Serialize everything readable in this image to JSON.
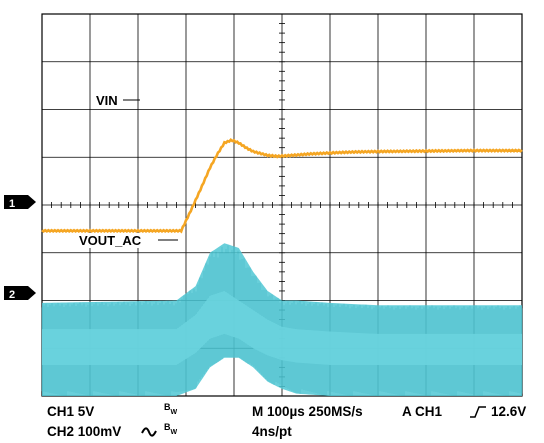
{
  "chart_data": {
    "type": "line",
    "title": "",
    "grid": true,
    "grid_divisions": {
      "x": 10,
      "y": 8
    },
    "time_per_div_us": 100,
    "x_unit": "us",
    "series": [
      {
        "name": "VIN",
        "channel": 1,
        "color": "#f5a623",
        "volts_per_div": 5,
        "ground_div": 3.0,
        "x": [
          0,
          290,
          310,
          330,
          350,
          365,
          380,
          395,
          410,
          425,
          440,
          455,
          470,
          490,
          520,
          560,
          600,
          650,
          700,
          800,
          900,
          1000
        ],
        "y": [
          2.3,
          2.3,
          4.4,
          6.6,
          8.9,
          10.3,
          11.5,
          11.8,
          11.5,
          11.0,
          10.6,
          10.4,
          10.2,
          10.1,
          10.2,
          10.35,
          10.45,
          10.55,
          10.6,
          10.65,
          10.7,
          10.7
        ]
      },
      {
        "name": "VOUT_AC",
        "channel": 2,
        "color": "#4fc7d4",
        "volts_per_div": 0.1,
        "ground_div": 1.0,
        "band_x": [
          0,
          280,
          320,
          350,
          380,
          410,
          440,
          470,
          500,
          530,
          600,
          700,
          800,
          900,
          1000
        ],
        "band_upper": [
          0.095,
          0.1,
          0.13,
          0.2,
          0.22,
          0.21,
          0.16,
          0.12,
          0.1,
          0.1,
          0.095,
          0.09,
          0.09,
          0.09,
          0.09
        ],
        "band_lower": [
          -0.1,
          -0.1,
          -0.085,
          -0.04,
          -0.02,
          -0.02,
          -0.04,
          -0.07,
          -0.085,
          -0.095,
          -0.1,
          -0.1,
          -0.1,
          -0.1,
          -0.1
        ],
        "inner_upper": [
          0.04,
          0.04,
          0.07,
          0.11,
          0.12,
          0.1,
          0.08,
          0.06,
          0.045,
          0.04,
          0.035,
          0.03,
          0.03,
          0.03,
          0.03
        ],
        "inner_lower": [
          -0.035,
          -0.035,
          -0.01,
          0.02,
          0.03,
          0.02,
          0.0,
          -0.015,
          -0.025,
          -0.03,
          -0.035,
          -0.035,
          -0.035,
          -0.035,
          -0.035
        ]
      }
    ],
    "trace_labels": {
      "vin": "VIN",
      "vout": "VOUT_AC"
    },
    "channel_markers": {
      "ch1": "1",
      "ch2": "2"
    },
    "trigger_level_V": 12.6
  },
  "readouts": {
    "ch1": "CH1 5V",
    "ch2": "CH2 100mV",
    "bw": "B",
    "bw_sub": "W",
    "timebase": "M 100µs 250MS/s",
    "points": "4ns/pt",
    "trigger_source": "A  CH1",
    "trigger_level": "12.6V"
  }
}
